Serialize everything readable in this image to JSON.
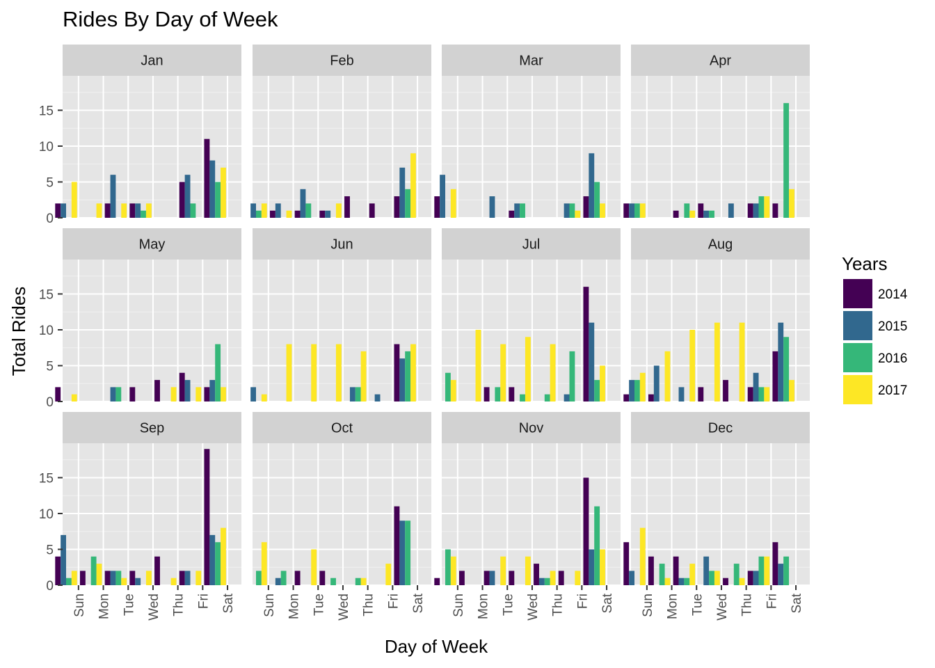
{
  "chart_data": {
    "type": "bar",
    "title": "Rides By Day of Week",
    "xlabel": "Day of Week",
    "ylabel": "Total Rides",
    "ylim": [
      0,
      19.8
    ],
    "yticks": [
      0,
      5,
      10,
      15
    ],
    "categories": [
      "Sun",
      "Mon",
      "Tue",
      "Wed",
      "Thu",
      "Fri",
      "Sat"
    ],
    "grid": true,
    "legend": {
      "title": "Years",
      "placement": "right",
      "entries": [
        {
          "name": "2014",
          "color": "#440154"
        },
        {
          "name": "2015",
          "color": "#31688e"
        },
        {
          "name": "2016",
          "color": "#35b779"
        },
        {
          "name": "2017",
          "color": "#fde725"
        }
      ]
    },
    "facets": [
      {
        "label": "Jan",
        "series": {
          "2014": [
            2,
            0,
            2,
            2,
            0,
            5,
            11
          ],
          "2015": [
            2,
            0,
            6,
            2,
            0,
            6,
            8
          ],
          "2016": [
            0,
            0,
            0,
            1,
            0,
            2,
            5
          ],
          "2017": [
            5,
            2,
            2,
            2,
            0,
            0,
            7
          ]
        }
      },
      {
        "label": "Feb",
        "series": {
          "2014": [
            0,
            1,
            1,
            1,
            3,
            2,
            3
          ],
          "2015": [
            2,
            2,
            4,
            1,
            0,
            0,
            7
          ],
          "2016": [
            1,
            0,
            2,
            0,
            0,
            0,
            4
          ],
          "2017": [
            2,
            1,
            0,
            2,
            0,
            0,
            9
          ]
        }
      },
      {
        "label": "Mar",
        "series": {
          "2014": [
            3,
            0,
            0,
            1,
            0,
            0,
            3
          ],
          "2015": [
            6,
            0,
            3,
            2,
            0,
            2,
            9
          ],
          "2016": [
            0,
            0,
            0,
            2,
            0,
            2,
            5
          ],
          "2017": [
            4,
            0,
            0,
            0,
            0,
            1,
            2
          ]
        }
      },
      {
        "label": "Apr",
        "series": {
          "2014": [
            2,
            0,
            1,
            2,
            0,
            2,
            2
          ],
          "2015": [
            2,
            0,
            0,
            1,
            2,
            2,
            0
          ],
          "2016": [
            2,
            0,
            2,
            1,
            0,
            3,
            16
          ],
          "2017": [
            2,
            0,
            1,
            0,
            0,
            3,
            4
          ]
        }
      },
      {
        "label": "May",
        "series": {
          "2014": [
            2,
            0,
            0,
            2,
            3,
            4,
            2
          ],
          "2015": [
            0,
            0,
            2,
            0,
            0,
            3,
            3
          ],
          "2016": [
            0,
            0,
            2,
            0,
            0,
            0,
            8
          ],
          "2017": [
            1,
            0,
            0,
            0,
            2,
            2,
            2
          ]
        }
      },
      {
        "label": "Jun",
        "series": {
          "2014": [
            0,
            0,
            0,
            0,
            0,
            0,
            8
          ],
          "2015": [
            2,
            0,
            0,
            0,
            2,
            1,
            6
          ],
          "2016": [
            0,
            0,
            0,
            0,
            2,
            0,
            7
          ],
          "2017": [
            1,
            8,
            8,
            8,
            7,
            0,
            8
          ]
        }
      },
      {
        "label": "Jul",
        "series": {
          "2014": [
            0,
            0,
            2,
            2,
            0,
            0,
            16
          ],
          "2015": [
            0,
            0,
            0,
            0,
            0,
            1,
            11
          ],
          "2016": [
            4,
            0,
            2,
            1,
            1,
            7,
            3
          ],
          "2017": [
            3,
            10,
            8,
            9,
            8,
            0,
            5
          ]
        }
      },
      {
        "label": "Aug",
        "series": {
          "2014": [
            1,
            1,
            0,
            2,
            3,
            2,
            7
          ],
          "2015": [
            3,
            5,
            2,
            0,
            0,
            4,
            11
          ],
          "2016": [
            3,
            0,
            0,
            0,
            0,
            2,
            9
          ],
          "2017": [
            4,
            7,
            10,
            11,
            11,
            2,
            3
          ]
        }
      },
      {
        "label": "Sep",
        "series": {
          "2014": [
            4,
            2,
            2,
            2,
            4,
            2,
            19
          ],
          "2015": [
            7,
            0,
            2,
            1,
            0,
            2,
            7
          ],
          "2016": [
            1,
            4,
            2,
            0,
            0,
            0,
            6
          ],
          "2017": [
            2,
            3,
            1,
            2,
            1,
            2,
            8
          ]
        }
      },
      {
        "label": "Oct",
        "series": {
          "2014": [
            0,
            0,
            2,
            2,
            0,
            0,
            11
          ],
          "2015": [
            0,
            1,
            0,
            0,
            0,
            0,
            9
          ],
          "2016": [
            2,
            2,
            0,
            1,
            1,
            0,
            9
          ],
          "2017": [
            6,
            0,
            5,
            0,
            1,
            3,
            0
          ]
        }
      },
      {
        "label": "Nov",
        "series": {
          "2014": [
            1,
            2,
            2,
            2,
            3,
            2,
            15
          ],
          "2015": [
            0,
            0,
            2,
            0,
            1,
            0,
            5
          ],
          "2016": [
            5,
            0,
            0,
            0,
            1,
            0,
            11
          ],
          "2017": [
            4,
            0,
            4,
            4,
            2,
            2,
            5
          ]
        }
      },
      {
        "label": "Dec",
        "series": {
          "2014": [
            6,
            4,
            4,
            0,
            1,
            2,
            6
          ],
          "2015": [
            2,
            0,
            1,
            4,
            0,
            2,
            3
          ],
          "2016": [
            0,
            3,
            1,
            2,
            3,
            4,
            4
          ],
          "2017": [
            8,
            1,
            3,
            2,
            1,
            4,
            0
          ]
        }
      }
    ]
  }
}
